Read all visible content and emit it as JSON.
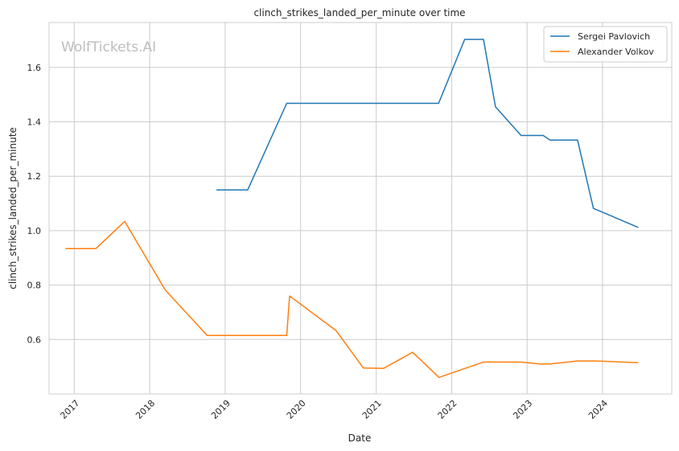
{
  "chart_data": {
    "type": "line",
    "title": "clinch_strikes_landed_per_minute over time",
    "xlabel": "Date",
    "ylabel": "clinch_strikes_landed_per_minute",
    "watermark": "WolfTickets.AI",
    "xlim": [
      "2016-09-01",
      "2024-12-01"
    ],
    "ylim": [
      0.4,
      1.765
    ],
    "x_ticks": [
      "2017-01-01",
      "2018-01-01",
      "2019-01-01",
      "2020-01-01",
      "2021-01-01",
      "2022-01-01",
      "2023-01-01",
      "2024-01-01"
    ],
    "x_tick_labels": [
      "2017",
      "2018",
      "2019",
      "2020",
      "2021",
      "2022",
      "2023",
      "2024"
    ],
    "y_ticks": [
      0.6,
      0.8,
      1.0,
      1.2,
      1.4,
      1.6
    ],
    "y_tick_labels": [
      "0.6",
      "0.8",
      "1.0",
      "1.2",
      "1.4",
      "1.6"
    ],
    "grid": true,
    "legend_position": "top-right",
    "series": [
      {
        "name": "Sergei Pavlovich",
        "color": "#1f77b4",
        "points": [
          [
            "2018-11-20",
            1.15
          ],
          [
            "2019-04-20",
            1.15
          ],
          [
            "2019-10-26",
            1.468
          ],
          [
            "2021-10-30",
            1.468
          ],
          [
            "2022-03-05",
            1.703
          ],
          [
            "2022-06-04",
            1.703
          ],
          [
            "2022-08-01",
            1.455
          ],
          [
            "2022-12-03",
            1.35
          ],
          [
            "2023-03-20",
            1.35
          ],
          [
            "2023-04-22",
            1.333
          ],
          [
            "2023-09-02",
            1.333
          ],
          [
            "2023-11-18",
            1.082
          ],
          [
            "2024-06-22",
            1.012
          ]
        ]
      },
      {
        "name": "Alexander Volkov",
        "color": "#ff7f0e",
        "points": [
          [
            "2016-11-19",
            0.934
          ],
          [
            "2017-04-15",
            0.934
          ],
          [
            "2017-09-02",
            1.034
          ],
          [
            "2018-03-17",
            0.782
          ],
          [
            "2018-10-06",
            0.615
          ],
          [
            "2019-10-26",
            0.615
          ],
          [
            "2019-11-09",
            0.76
          ],
          [
            "2020-06-20",
            0.633
          ],
          [
            "2020-10-31",
            0.495
          ],
          [
            "2021-02-06",
            0.494
          ],
          [
            "2021-06-26",
            0.553
          ],
          [
            "2021-11-01",
            0.461
          ],
          [
            "2022-03-19",
            0.497
          ],
          [
            "2022-06-04",
            0.517
          ],
          [
            "2022-12-03",
            0.517
          ],
          [
            "2023-03-04",
            0.51
          ],
          [
            "2023-04-22",
            0.51
          ],
          [
            "2023-09-02",
            0.521
          ],
          [
            "2023-11-25",
            0.521
          ],
          [
            "2024-06-22",
            0.515
          ]
        ]
      }
    ]
  }
}
